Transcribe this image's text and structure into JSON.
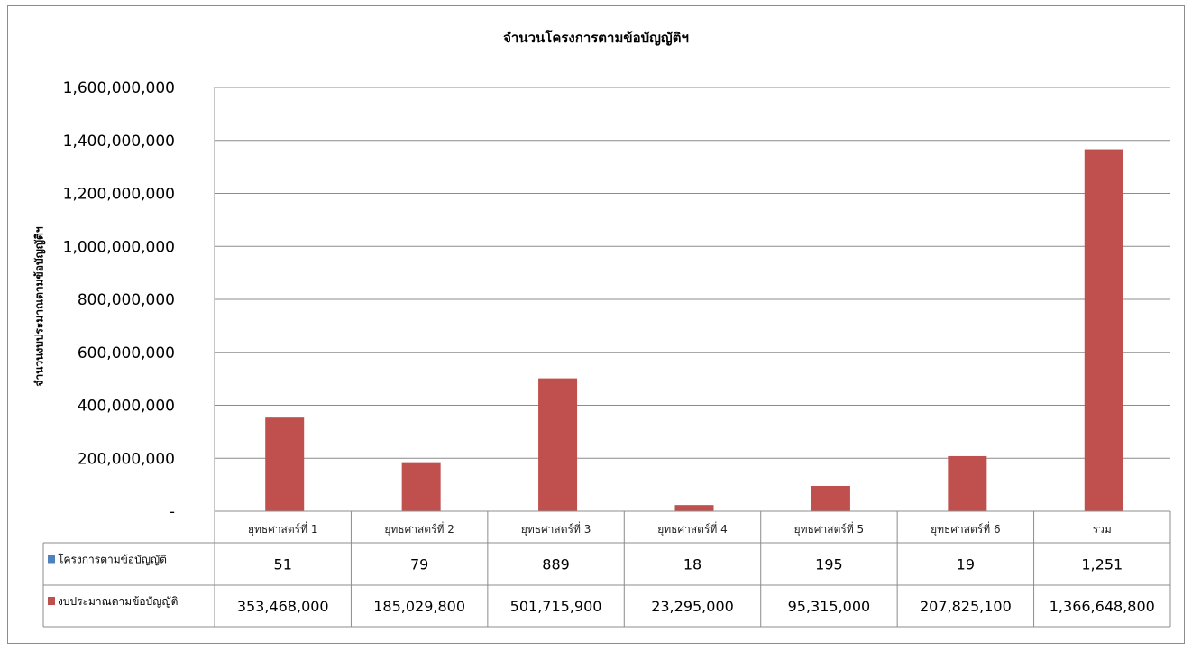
{
  "chart_data": {
    "type": "bar",
    "title": "จำนวนโครงการตามข้อบัญญัติฯ",
    "ylabel": "จำนวนงบประมาณตามข้อบัญญัติฯ",
    "xlabel": "",
    "ylim": [
      0,
      1600000000
    ],
    "y_ticks": [
      {
        "value": 0,
        "label": "-"
      },
      {
        "value": 200000000,
        "label": "200,000,000"
      },
      {
        "value": 400000000,
        "label": "400,000,000"
      },
      {
        "value": 600000000,
        "label": "600,000,000"
      },
      {
        "value": 800000000,
        "label": "800,000,000"
      },
      {
        "value": 1000000000,
        "label": "1,000,000,000"
      },
      {
        "value": 1200000000,
        "label": "1,200,000,000"
      },
      {
        "value": 1400000000,
        "label": "1,400,000,000"
      },
      {
        "value": 1600000000,
        "label": "1,600,000,000"
      }
    ],
    "grid": true,
    "legend_position": "data-table",
    "categories": [
      "ยุทธศาสตร์ที่ 1",
      "ยุทธศาสตร์ที่ 2",
      "ยุทธศาสตร์ที่ 3",
      "ยุทธศาสตร์ที่ 4",
      "ยุทธศาสตร์ที่ 5",
      "ยุทธศาสตร์ที่ 6",
      "รวม"
    ],
    "series": [
      {
        "name": "โครงการตามข้อบัญญัติ",
        "color": "#4f81bd",
        "values": [
          51,
          79,
          889,
          18,
          195,
          19,
          1251
        ],
        "labels": [
          "51",
          "79",
          "889",
          "18",
          "195",
          "19",
          "1,251"
        ]
      },
      {
        "name": "งบประมาณตามข้อบัญญัติ",
        "color": "#c0504d",
        "values": [
          353468000,
          185029800,
          501715900,
          23295000,
          95315000,
          207825100,
          1366648800
        ],
        "labels": [
          "353,468,000",
          "185,029,800",
          "501,715,900",
          "23,295,000",
          "95,315,000",
          "207,825,100",
          "1,366,648,800"
        ]
      }
    ]
  }
}
